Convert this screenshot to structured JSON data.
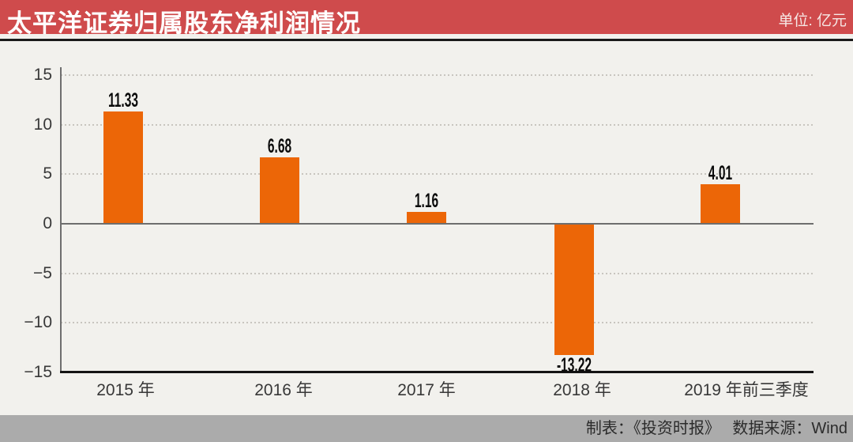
{
  "header": {
    "title": "太平洋证券归属股东净利润情况",
    "unit_label": "单位: 亿元"
  },
  "footer": {
    "credit": "制表：《投资时报》　 数据来源：Wind"
  },
  "chart_data": {
    "type": "bar",
    "title": "太平洋证券归属股东净利润情况",
    "unit": "亿元",
    "categories": [
      "2015 年",
      "2016 年",
      "2017 年",
      "2018 年",
      "2019 年前三季度"
    ],
    "values": [
      11.33,
      6.68,
      1.16,
      -13.22,
      4.01
    ],
    "value_labels": [
      "11.33",
      "6.68",
      "1.16",
      "-13.22",
      "4.01"
    ],
    "y_ticks": [
      15,
      10,
      5,
      0,
      -5,
      -10,
      -15
    ],
    "y_tick_labels": [
      "15",
      "10",
      "5",
      "0",
      "−5",
      "−10",
      "−15"
    ],
    "ylim": [
      -15,
      15
    ],
    "grid": "horizontal-dotted",
    "legend": "none",
    "xlabel": "",
    "ylabel": "",
    "bar_color": "#EC6607",
    "source": "Wind",
    "credit": "《投资时报》"
  },
  "colors": {
    "banner_red": "#CF4B4C",
    "bar_orange": "#EC6607",
    "background": "#F2F1ED",
    "footer_gray": "#ABABAB",
    "axis_gray": "#6E6E6E",
    "bottom_black": "#141414"
  }
}
